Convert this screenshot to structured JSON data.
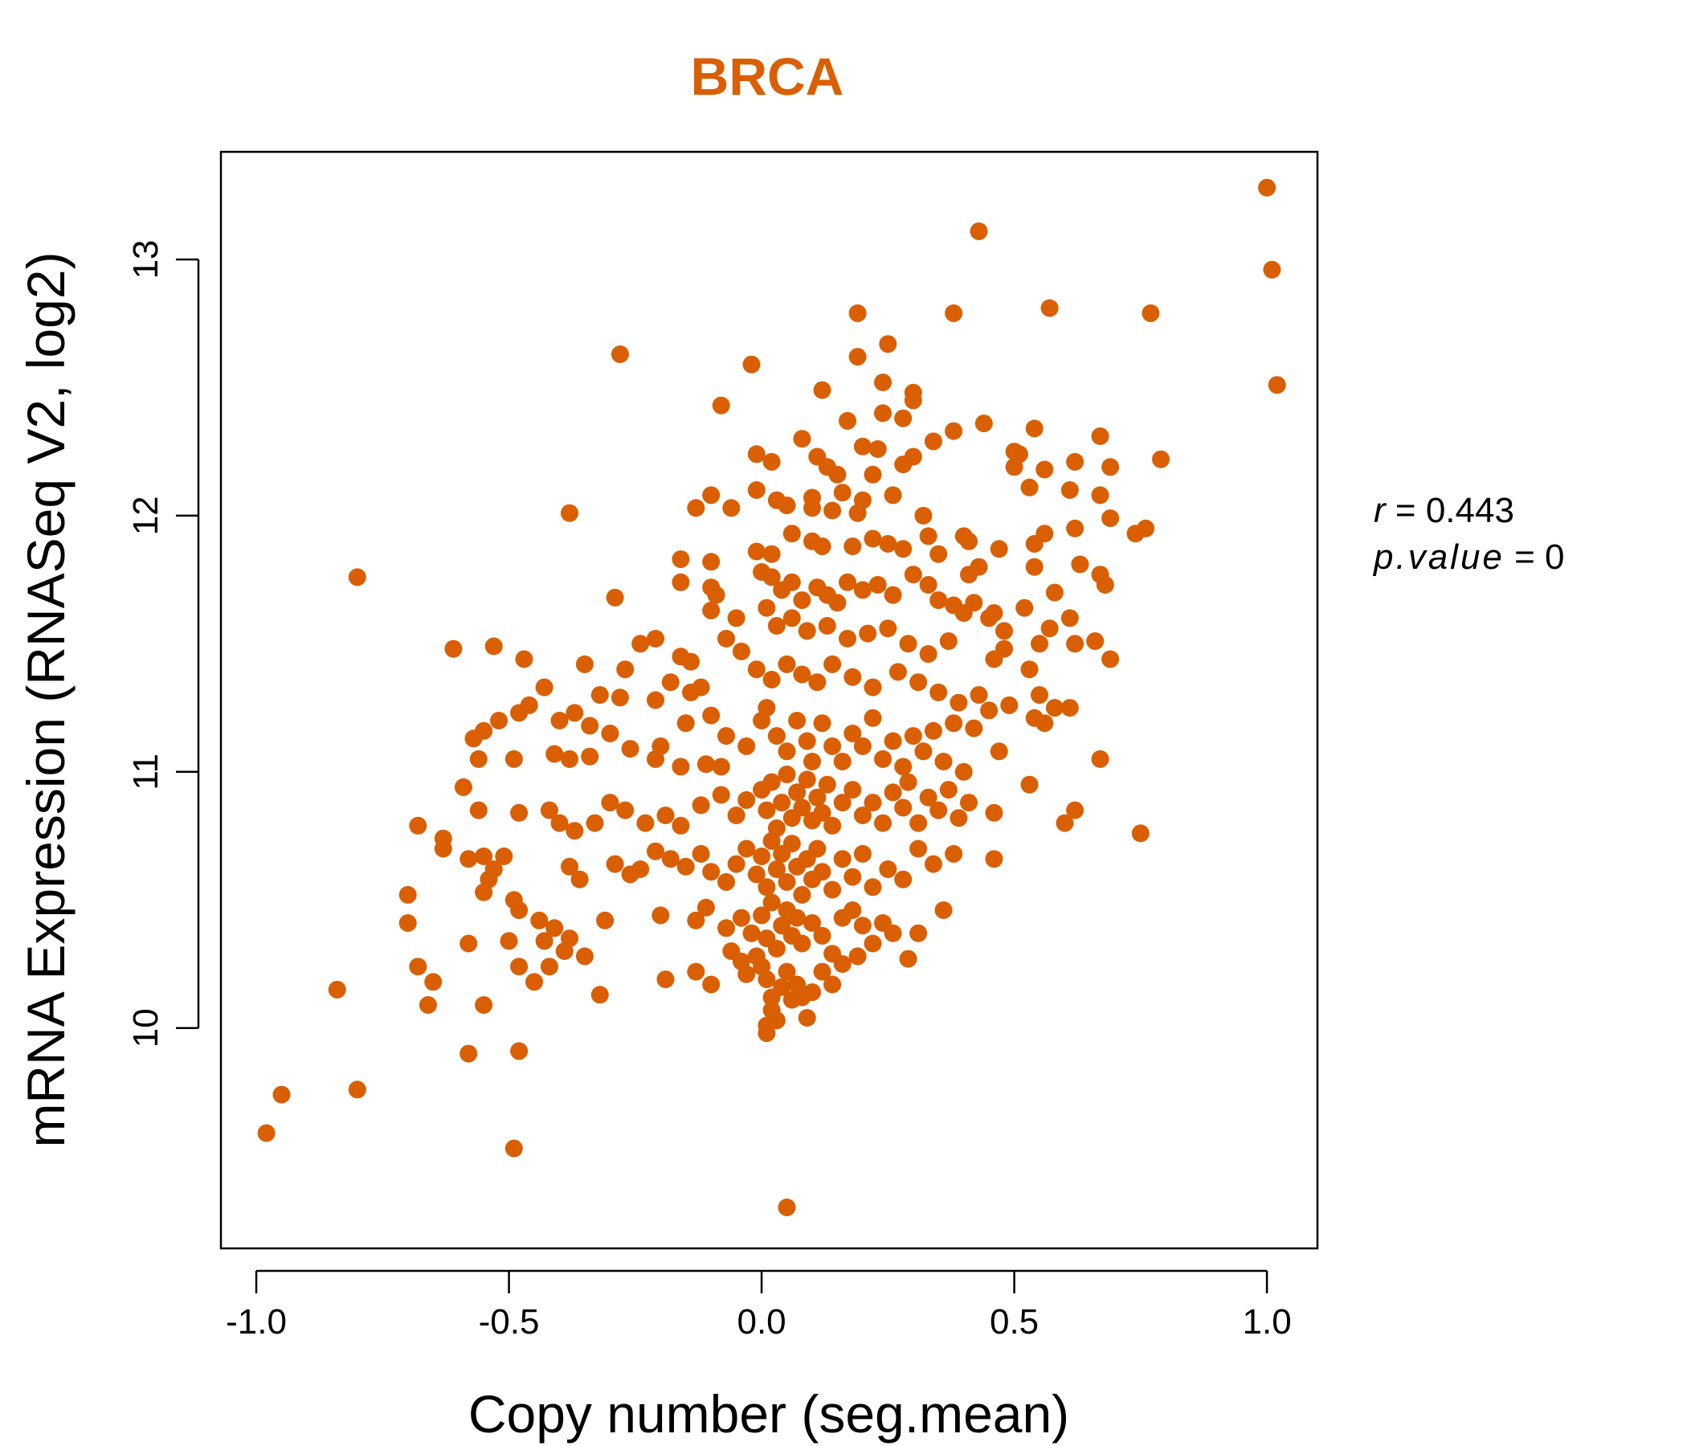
{
  "chart_data": {
    "type": "scatter",
    "title": "BRCA",
    "xlabel": "Copy number (seg.mean)",
    "ylabel": "mRNA Expression (RNASeq V2, log2)",
    "xlim": [
      -1.07,
      1.1
    ],
    "ylim": [
      9.14,
      13.42
    ],
    "x_ticks": [
      -1.0,
      -0.5,
      0.0,
      0.5,
      1.0
    ],
    "x_tick_labels": [
      "-1.0",
      "-0.5",
      "0.0",
      "0.5",
      "1.0"
    ],
    "y_ticks": [
      10,
      11,
      12,
      13
    ],
    "y_tick_labels": [
      "10",
      "11",
      "12",
      "13"
    ],
    "grid": false,
    "legend": "none",
    "stats": {
      "r_label": "r",
      "r_value": "0.443",
      "p_label": "p.value",
      "p_value": "0"
    },
    "colors": {
      "points": "#D95F02",
      "title": "#D95F02",
      "axis": "#000000"
    },
    "points": [
      [
        1.0,
        13.28
      ],
      [
        1.01,
        12.96
      ],
      [
        1.02,
        12.51
      ],
      [
        0.43,
        13.11
      ],
      [
        0.57,
        12.81
      ],
      [
        0.77,
        12.79
      ],
      [
        0.38,
        12.79
      ],
      [
        0.19,
        12.79
      ],
      [
        0.25,
        12.67
      ],
      [
        -0.28,
        12.63
      ],
      [
        -0.02,
        12.59
      ],
      [
        0.19,
        12.62
      ],
      [
        0.24,
        12.52
      ],
      [
        0.12,
        12.49
      ],
      [
        0.3,
        12.48
      ],
      [
        0.3,
        12.45
      ],
      [
        -0.08,
        12.43
      ],
      [
        0.17,
        12.37
      ],
      [
        0.24,
        12.4
      ],
      [
        0.28,
        12.38
      ],
      [
        0.44,
        12.36
      ],
      [
        0.54,
        12.34
      ],
      [
        0.38,
        12.33
      ],
      [
        0.34,
        12.29
      ],
      [
        0.67,
        12.31
      ],
      [
        0.08,
        12.3
      ],
      [
        0.2,
        12.27
      ],
      [
        0.23,
        12.26
      ],
      [
        0.5,
        12.25
      ],
      [
        0.51,
        12.24
      ],
      [
        0.79,
        12.22
      ],
      [
        0.62,
        12.21
      ],
      [
        0.69,
        12.19
      ],
      [
        0.56,
        12.18
      ],
      [
        0.5,
        12.19
      ],
      [
        -0.01,
        12.24
      ],
      [
        0.02,
        12.21
      ],
      [
        0.11,
        12.23
      ],
      [
        0.13,
        12.19
      ],
      [
        0.15,
        12.16
      ],
      [
        0.22,
        12.16
      ],
      [
        0.3,
        12.23
      ],
      [
        0.28,
        12.2
      ],
      [
        0.53,
        12.11
      ],
      [
        0.61,
        12.1
      ],
      [
        0.67,
        12.08
      ],
      [
        -0.1,
        12.08
      ],
      [
        -0.01,
        12.1
      ],
      [
        -0.13,
        12.03
      ],
      [
        -0.06,
        12.03
      ],
      [
        -0.38,
        12.01
      ],
      [
        0.1,
        12.07
      ],
      [
        0.16,
        12.09
      ],
      [
        0.2,
        12.06
      ],
      [
        0.26,
        12.08
      ],
      [
        0.32,
        12.0
      ],
      [
        0.03,
        12.06
      ],
      [
        0.05,
        12.04
      ],
      [
        0.1,
        12.03
      ],
      [
        0.14,
        12.02
      ],
      [
        0.19,
        12.01
      ],
      [
        0.69,
        11.99
      ],
      [
        0.76,
        11.95
      ],
      [
        0.74,
        11.93
      ],
      [
        0.56,
        11.93
      ],
      [
        0.54,
        11.89
      ],
      [
        0.62,
        11.95
      ],
      [
        0.4,
        11.92
      ],
      [
        0.41,
        11.9
      ],
      [
        0.47,
        11.87
      ],
      [
        0.06,
        11.93
      ],
      [
        0.1,
        11.9
      ],
      [
        0.12,
        11.88
      ],
      [
        0.18,
        11.88
      ],
      [
        0.22,
        11.91
      ],
      [
        0.25,
        11.89
      ],
      [
        0.28,
        11.87
      ],
      [
        0.33,
        11.92
      ],
      [
        0.35,
        11.85
      ],
      [
        -0.01,
        11.86
      ],
      [
        0.02,
        11.85
      ],
      [
        -0.16,
        11.83
      ],
      [
        -0.1,
        11.82
      ],
      [
        0.63,
        11.81
      ],
      [
        0.67,
        11.77
      ],
      [
        0.68,
        11.73
      ],
      [
        0.54,
        11.8
      ],
      [
        0.43,
        11.8
      ],
      [
        0.41,
        11.77
      ],
      [
        -0.8,
        11.76
      ],
      [
        -0.16,
        11.74
      ],
      [
        -0.1,
        11.72
      ],
      [
        -0.29,
        11.68
      ],
      [
        -0.09,
        11.69
      ],
      [
        0.0,
        11.78
      ],
      [
        0.02,
        11.76
      ],
      [
        0.04,
        11.71
      ],
      [
        0.06,
        11.74
      ],
      [
        0.08,
        11.67
      ],
      [
        0.11,
        11.72
      ],
      [
        0.13,
        11.69
      ],
      [
        0.15,
        11.66
      ],
      [
        0.17,
        11.74
      ],
      [
        0.2,
        11.71
      ],
      [
        0.23,
        11.73
      ],
      [
        0.26,
        11.69
      ],
      [
        0.3,
        11.77
      ],
      [
        0.33,
        11.73
      ],
      [
        0.35,
        11.67
      ],
      [
        0.38,
        11.65
      ],
      [
        0.4,
        11.62
      ],
      [
        0.42,
        11.66
      ],
      [
        0.45,
        11.6
      ],
      [
        0.46,
        11.62
      ],
      [
        0.52,
        11.64
      ],
      [
        0.58,
        11.7
      ],
      [
        0.61,
        11.6
      ],
      [
        0.57,
        11.56
      ],
      [
        0.48,
        11.55
      ],
      [
        -0.1,
        11.63
      ],
      [
        -0.05,
        11.6
      ],
      [
        0.01,
        11.64
      ],
      [
        0.03,
        11.57
      ],
      [
        0.06,
        11.6
      ],
      [
        0.09,
        11.55
      ],
      [
        0.13,
        11.57
      ],
      [
        0.17,
        11.52
      ],
      [
        0.21,
        11.54
      ],
      [
        0.25,
        11.56
      ],
      [
        0.29,
        11.5
      ],
      [
        0.33,
        11.46
      ],
      [
        0.37,
        11.51
      ],
      [
        -0.61,
        11.48
      ],
      [
        -0.53,
        11.49
      ],
      [
        -0.47,
        11.44
      ],
      [
        -0.21,
        11.52
      ],
      [
        -0.24,
        11.5
      ],
      [
        -0.16,
        11.45
      ],
      [
        -0.14,
        11.43
      ],
      [
        -0.07,
        11.52
      ],
      [
        -0.04,
        11.47
      ],
      [
        0.55,
        11.5
      ],
      [
        0.62,
        11.5
      ],
      [
        0.66,
        11.51
      ],
      [
        0.69,
        11.44
      ],
      [
        0.46,
        11.44
      ],
      [
        0.48,
        11.48
      ],
      [
        0.53,
        11.4
      ],
      [
        -0.35,
        11.42
      ],
      [
        -0.27,
        11.4
      ],
      [
        -0.18,
        11.35
      ],
      [
        -0.12,
        11.33
      ],
      [
        -0.01,
        11.4
      ],
      [
        0.02,
        11.36
      ],
      [
        0.05,
        11.42
      ],
      [
        0.08,
        11.38
      ],
      [
        0.11,
        11.35
      ],
      [
        0.14,
        11.42
      ],
      [
        0.18,
        11.37
      ],
      [
        0.22,
        11.33
      ],
      [
        0.27,
        11.39
      ],
      [
        0.31,
        11.35
      ],
      [
        0.35,
        11.31
      ],
      [
        0.39,
        11.27
      ],
      [
        0.43,
        11.3
      ],
      [
        -0.43,
        11.33
      ],
      [
        -0.32,
        11.3
      ],
      [
        -0.28,
        11.29
      ],
      [
        -0.21,
        11.28
      ],
      [
        -0.14,
        11.31
      ],
      [
        0.55,
        11.3
      ],
      [
        0.58,
        11.25
      ],
      [
        0.61,
        11.25
      ],
      [
        0.54,
        11.21
      ],
      [
        0.49,
        11.26
      ],
      [
        0.45,
        11.24
      ],
      [
        -0.46,
        11.26
      ],
      [
        -0.48,
        11.23
      ],
      [
        -0.52,
        11.2
      ],
      [
        -0.55,
        11.16
      ],
      [
        -0.57,
        11.13
      ],
      [
        -0.4,
        11.2
      ],
      [
        -0.37,
        11.23
      ],
      [
        -0.34,
        11.18
      ],
      [
        -0.3,
        11.15
      ],
      [
        -0.26,
        11.09
      ],
      [
        -0.2,
        11.1
      ],
      [
        -0.15,
        11.19
      ],
      [
        -0.1,
        11.22
      ],
      [
        -0.07,
        11.14
      ],
      [
        -0.03,
        11.1
      ],
      [
        0.0,
        11.2
      ],
      [
        0.01,
        11.25
      ],
      [
        0.03,
        11.14
      ],
      [
        0.05,
        11.08
      ],
      [
        0.07,
        11.2
      ],
      [
        0.09,
        11.12
      ],
      [
        0.1,
        11.04
      ],
      [
        0.12,
        11.19
      ],
      [
        0.14,
        11.1
      ],
      [
        0.16,
        11.04
      ],
      [
        0.18,
        11.15
      ],
      [
        0.2,
        11.1
      ],
      [
        0.22,
        11.21
      ],
      [
        0.24,
        11.05
      ],
      [
        0.26,
        11.12
      ],
      [
        0.28,
        11.02
      ],
      [
        0.3,
        11.14
      ],
      [
        0.32,
        11.08
      ],
      [
        0.34,
        11.16
      ],
      [
        0.36,
        11.04
      ],
      [
        0.38,
        11.19
      ],
      [
        0.4,
        11.0
      ],
      [
        0.42,
        11.17
      ],
      [
        0.47,
        11.08
      ],
      [
        0.56,
        11.19
      ],
      [
        0.67,
        11.05
      ],
      [
        -0.56,
        11.05
      ],
      [
        -0.49,
        11.05
      ],
      [
        -0.41,
        11.07
      ],
      [
        -0.38,
        11.05
      ],
      [
        -0.34,
        11.06
      ],
      [
        -0.21,
        11.05
      ],
      [
        -0.16,
        11.02
      ],
      [
        -0.11,
        11.03
      ],
      [
        -0.08,
        11.02
      ],
      [
        -0.59,
        10.94
      ],
      [
        -0.56,
        10.85
      ],
      [
        -0.48,
        10.84
      ],
      [
        -0.42,
        10.85
      ],
      [
        -0.4,
        10.8
      ],
      [
        -0.37,
        10.77
      ],
      [
        -0.33,
        10.8
      ],
      [
        -0.3,
        10.88
      ],
      [
        -0.27,
        10.85
      ],
      [
        -0.23,
        10.8
      ],
      [
        -0.19,
        10.83
      ],
      [
        -0.16,
        10.79
      ],
      [
        -0.12,
        10.87
      ],
      [
        -0.08,
        10.91
      ],
      [
        -0.05,
        10.83
      ],
      [
        -0.03,
        10.89
      ],
      [
        0.0,
        10.93
      ],
      [
        0.01,
        10.85
      ],
      [
        0.02,
        10.96
      ],
      [
        0.03,
        10.78
      ],
      [
        0.04,
        10.88
      ],
      [
        0.05,
        10.99
      ],
      [
        0.06,
        10.82
      ],
      [
        0.07,
        10.92
      ],
      [
        0.08,
        10.86
      ],
      [
        0.09,
        10.97
      ],
      [
        0.1,
        10.81
      ],
      [
        0.11,
        10.9
      ],
      [
        0.12,
        10.84
      ],
      [
        0.13,
        10.95
      ],
      [
        0.14,
        10.79
      ],
      [
        0.16,
        10.88
      ],
      [
        0.18,
        10.93
      ],
      [
        0.2,
        10.83
      ],
      [
        0.22,
        10.88
      ],
      [
        0.24,
        10.8
      ],
      [
        0.26,
        10.92
      ],
      [
        0.28,
        10.86
      ],
      [
        0.29,
        10.96
      ],
      [
        0.31,
        10.8
      ],
      [
        0.33,
        10.9
      ],
      [
        0.35,
        10.85
      ],
      [
        0.37,
        10.93
      ],
      [
        0.39,
        10.82
      ],
      [
        0.41,
        10.88
      ],
      [
        0.46,
        10.84
      ],
      [
        0.53,
        10.95
      ],
      [
        0.62,
        10.85
      ],
      [
        0.6,
        10.8
      ],
      [
        0.75,
        10.76
      ],
      [
        -0.68,
        10.79
      ],
      [
        -0.63,
        10.74
      ],
      [
        -0.63,
        10.7
      ],
      [
        -0.58,
        10.66
      ],
      [
        -0.55,
        10.67
      ],
      [
        -0.53,
        10.62
      ],
      [
        -0.51,
        10.67
      ],
      [
        -0.54,
        10.58
      ],
      [
        -0.55,
        10.53
      ],
      [
        -0.38,
        10.63
      ],
      [
        -0.36,
        10.58
      ],
      [
        -0.29,
        10.64
      ],
      [
        -0.26,
        10.6
      ],
      [
        -0.24,
        10.62
      ],
      [
        -0.21,
        10.69
      ],
      [
        -0.18,
        10.66
      ],
      [
        -0.15,
        10.63
      ],
      [
        -0.12,
        10.68
      ],
      [
        -0.1,
        10.61
      ],
      [
        -0.07,
        10.57
      ],
      [
        -0.05,
        10.64
      ],
      [
        -0.03,
        10.7
      ],
      [
        -0.01,
        10.6
      ],
      [
        0.0,
        10.67
      ],
      [
        0.01,
        10.55
      ],
      [
        0.02,
        10.73
      ],
      [
        0.03,
        10.62
      ],
      [
        0.04,
        10.68
      ],
      [
        0.05,
        10.57
      ],
      [
        0.06,
        10.72
      ],
      [
        0.07,
        10.63
      ],
      [
        0.08,
        10.52
      ],
      [
        0.09,
        10.66
      ],
      [
        0.1,
        10.58
      ],
      [
        0.11,
        10.7
      ],
      [
        0.12,
        10.61
      ],
      [
        0.14,
        10.54
      ],
      [
        0.16,
        10.66
      ],
      [
        0.18,
        10.59
      ],
      [
        0.2,
        10.68
      ],
      [
        0.22,
        10.55
      ],
      [
        0.25,
        10.62
      ],
      [
        0.28,
        10.58
      ],
      [
        0.31,
        10.7
      ],
      [
        0.34,
        10.64
      ],
      [
        0.38,
        10.68
      ],
      [
        0.46,
        10.66
      ],
      [
        -0.7,
        10.52
      ],
      [
        -0.7,
        10.41
      ],
      [
        -0.49,
        10.5
      ],
      [
        -0.48,
        10.46
      ],
      [
        -0.44,
        10.42
      ],
      [
        -0.41,
        10.39
      ],
      [
        -0.43,
        10.34
      ],
      [
        -0.38,
        10.35
      ],
      [
        -0.39,
        10.3
      ],
      [
        -0.35,
        10.28
      ],
      [
        -0.31,
        10.42
      ],
      [
        -0.2,
        10.44
      ],
      [
        -0.13,
        10.42
      ],
      [
        -0.11,
        10.47
      ],
      [
        -0.07,
        10.39
      ],
      [
        -0.04,
        10.43
      ],
      [
        -0.02,
        10.37
      ],
      [
        0.0,
        10.44
      ],
      [
        0.01,
        10.35
      ],
      [
        0.02,
        10.49
      ],
      [
        0.03,
        10.31
      ],
      [
        0.04,
        10.4
      ],
      [
        0.05,
        10.46
      ],
      [
        0.06,
        10.36
      ],
      [
        0.07,
        10.43
      ],
      [
        0.08,
        10.33
      ],
      [
        0.1,
        10.41
      ],
      [
        0.12,
        10.36
      ],
      [
        0.14,
        10.29
      ],
      [
        0.16,
        10.43
      ],
      [
        0.18,
        10.46
      ],
      [
        0.2,
        10.4
      ],
      [
        0.22,
        10.33
      ],
      [
        0.24,
        10.41
      ],
      [
        0.26,
        10.37
      ],
      [
        0.29,
        10.27
      ],
      [
        0.31,
        10.37
      ],
      [
        0.36,
        10.46
      ],
      [
        -0.58,
        10.33
      ],
      [
        -0.5,
        10.34
      ],
      [
        -0.48,
        10.24
      ],
      [
        -0.45,
        10.18
      ],
      [
        -0.42,
        10.24
      ],
      [
        -0.68,
        10.24
      ],
      [
        -0.65,
        10.18
      ],
      [
        -0.66,
        10.09
      ],
      [
        -0.84,
        10.15
      ],
      [
        -0.55,
        10.09
      ],
      [
        -0.32,
        10.13
      ],
      [
        -0.19,
        10.19
      ],
      [
        -0.13,
        10.22
      ],
      [
        -0.1,
        10.17
      ],
      [
        -0.06,
        10.3
      ],
      [
        -0.04,
        10.26
      ],
      [
        -0.03,
        10.21
      ],
      [
        -0.01,
        10.28
      ],
      [
        0.0,
        10.24
      ],
      [
        0.01,
        10.19
      ],
      [
        0.02,
        10.12
      ],
      [
        0.02,
        10.07
      ],
      [
        0.03,
        10.03
      ],
      [
        0.04,
        10.16
      ],
      [
        0.05,
        10.22
      ],
      [
        0.06,
        10.11
      ],
      [
        0.07,
        10.17
      ],
      [
        0.08,
        10.12
      ],
      [
        0.09,
        10.04
      ],
      [
        0.1,
        10.14
      ],
      [
        0.12,
        10.22
      ],
      [
        0.14,
        10.17
      ],
      [
        0.16,
        10.25
      ],
      [
        0.19,
        10.28
      ],
      [
        0.01,
        10.01
      ],
      [
        0.01,
        9.98
      ],
      [
        -0.58,
        9.9
      ],
      [
        -0.48,
        9.91
      ],
      [
        -0.95,
        9.74
      ],
      [
        -0.8,
        9.76
      ],
      [
        -0.98,
        9.59
      ],
      [
        -0.49,
        9.53
      ],
      [
        0.05,
        9.3
      ]
    ]
  }
}
